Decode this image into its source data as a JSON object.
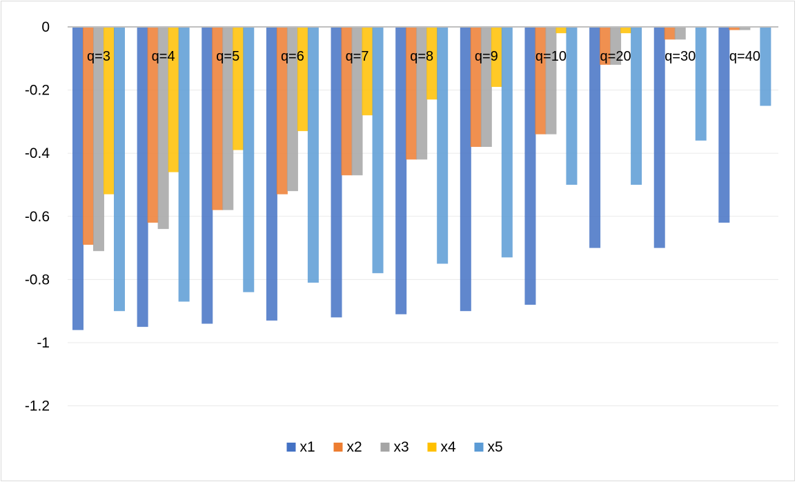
{
  "chart_data": {
    "type": "bar",
    "title": "",
    "xlabel": "",
    "ylabel": "",
    "categories": [
      "q=3",
      "q=4",
      "q=5",
      "q=6",
      "q=7",
      "q=8",
      "q=9",
      "q=10",
      "q=20",
      "q=30",
      "q=40"
    ],
    "series": [
      {
        "name": "x1",
        "color": "#4472c4",
        "values": [
          -0.96,
          -0.95,
          -0.94,
          -0.93,
          -0.92,
          -0.91,
          -0.9,
          -0.88,
          -0.7,
          -0.7,
          -0.62
        ]
      },
      {
        "name": "x2",
        "color": "#ed7d31",
        "values": [
          -0.69,
          -0.62,
          -0.58,
          -0.53,
          -0.47,
          -0.42,
          -0.38,
          -0.34,
          -0.12,
          -0.04,
          -0.01
        ]
      },
      {
        "name": "x3",
        "color": "#a5a5a5",
        "values": [
          -0.71,
          -0.64,
          -0.58,
          -0.52,
          -0.47,
          -0.42,
          -0.38,
          -0.34,
          -0.12,
          -0.04,
          -0.01
        ]
      },
      {
        "name": "x4",
        "color": "#ffc000",
        "values": [
          -0.53,
          -0.46,
          -0.39,
          -0.33,
          -0.28,
          -0.23,
          -0.19,
          -0.02,
          -0.02,
          0.0,
          0.0
        ]
      },
      {
        "name": "x5",
        "color": "#5b9bd5",
        "values": [
          -0.9,
          -0.87,
          -0.84,
          -0.81,
          -0.78,
          -0.75,
          -0.73,
          -0.5,
          -0.5,
          -0.36,
          -0.25
        ]
      }
    ],
    "y_ticks": [
      "0",
      "-0.2",
      "-0.4",
      "-0.6",
      "-0.8",
      "-1",
      "-1.2"
    ],
    "y_tick_values": [
      0,
      -0.2,
      -0.4,
      -0.6,
      -0.8,
      -1,
      -1.2
    ],
    "ylim": [
      -1.2,
      0
    ],
    "grid": true,
    "legend_position": "bottom"
  }
}
